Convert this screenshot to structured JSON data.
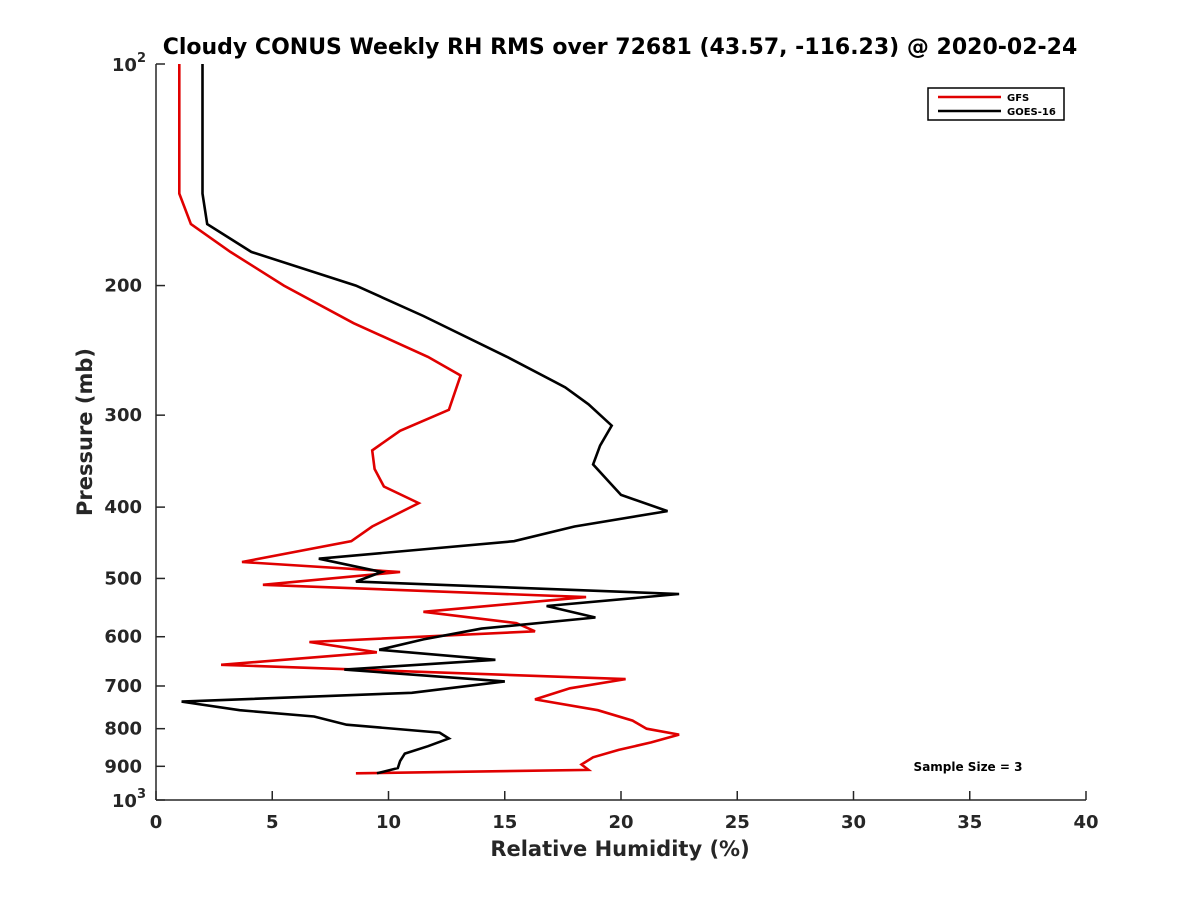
{
  "chart_data": {
    "type": "line",
    "title": "Cloudy CONUS Weekly RH RMS over 72681 (43.57, -116.23) @ 2020-02-24",
    "xlabel": "Relative Humidity (%)",
    "ylabel": "Pressure (mb)",
    "xlim": [
      0,
      40
    ],
    "ylim": [
      100,
      1000
    ],
    "yscale": "log",
    "y_inverted": true,
    "x_ticks": [
      0,
      5,
      10,
      15,
      20,
      25,
      30,
      35,
      40
    ],
    "y_ticks": [
      {
        "value": 100,
        "base": "10",
        "exp": "2"
      },
      {
        "value": 200,
        "label": "200"
      },
      {
        "value": 300,
        "label": "300"
      },
      {
        "value": 400,
        "label": "400"
      },
      {
        "value": 500,
        "label": "500"
      },
      {
        "value": 600,
        "label": "600"
      },
      {
        "value": 700,
        "label": "700"
      },
      {
        "value": 800,
        "label": "800"
      },
      {
        "value": 900,
        "label": "900"
      },
      {
        "value": 1000,
        "base": "10",
        "exp": "3"
      }
    ],
    "grid": false,
    "legend_position": "top-right",
    "annotation": "Sample Size = 3",
    "series": [
      {
        "name": "GFS",
        "color": "#e00000",
        "points": [
          [
            1.0,
            100
          ],
          [
            1.0,
            125
          ],
          [
            1.0,
            150
          ],
          [
            1.5,
            165
          ],
          [
            3.2,
            180
          ],
          [
            5.5,
            200
          ],
          [
            8.5,
            225
          ],
          [
            11.7,
            250
          ],
          [
            13.1,
            265
          ],
          [
            12.6,
            295
          ],
          [
            10.5,
            315
          ],
          [
            9.3,
            335
          ],
          [
            9.4,
            355
          ],
          [
            9.8,
            375
          ],
          [
            11.3,
            395
          ],
          [
            9.3,
            425
          ],
          [
            8.4,
            445
          ],
          [
            3.7,
            475
          ],
          [
            10.5,
            490
          ],
          [
            4.6,
            510
          ],
          [
            18.5,
            530
          ],
          [
            11.5,
            555
          ],
          [
            15.5,
            575
          ],
          [
            16.3,
            590
          ],
          [
            6.6,
            610
          ],
          [
            9.5,
            630
          ],
          [
            2.8,
            655
          ],
          [
            20.2,
            685
          ],
          [
            17.8,
            705
          ],
          [
            16.3,
            730
          ],
          [
            19.0,
            755
          ],
          [
            20.5,
            780
          ],
          [
            21.1,
            800
          ],
          [
            22.5,
            815
          ],
          [
            21.3,
            835
          ],
          [
            19.9,
            855
          ],
          [
            18.8,
            875
          ],
          [
            18.3,
            895
          ],
          [
            18.6,
            910
          ],
          [
            8.6,
            920
          ]
        ]
      },
      {
        "name": "GOES-16",
        "color": "#000000",
        "points": [
          [
            2.0,
            100
          ],
          [
            2.0,
            125
          ],
          [
            2.0,
            150
          ],
          [
            2.2,
            165
          ],
          [
            4.1,
            180
          ],
          [
            8.6,
            200
          ],
          [
            11.5,
            220
          ],
          [
            15.1,
            250
          ],
          [
            17.6,
            275
          ],
          [
            18.6,
            290
          ],
          [
            19.6,
            310
          ],
          [
            19.1,
            330
          ],
          [
            18.8,
            350
          ],
          [
            19.5,
            370
          ],
          [
            20.0,
            385
          ],
          [
            22.0,
            405
          ],
          [
            18.0,
            425
          ],
          [
            15.4,
            445
          ],
          [
            7.0,
            470
          ],
          [
            9.7,
            490
          ],
          [
            8.6,
            505
          ],
          [
            22.5,
            525
          ],
          [
            16.8,
            545
          ],
          [
            18.9,
            565
          ],
          [
            14.0,
            585
          ],
          [
            11.5,
            605
          ],
          [
            9.6,
            625
          ],
          [
            14.6,
            645
          ],
          [
            8.1,
            665
          ],
          [
            15.0,
            690
          ],
          [
            11.0,
            715
          ],
          [
            1.1,
            735
          ],
          [
            3.6,
            755
          ],
          [
            6.8,
            770
          ],
          [
            8.2,
            790
          ],
          [
            12.2,
            810
          ],
          [
            12.6,
            825
          ],
          [
            11.7,
            845
          ],
          [
            10.7,
            865
          ],
          [
            10.5,
            885
          ],
          [
            10.4,
            905
          ],
          [
            9.5,
            920
          ]
        ]
      }
    ]
  }
}
